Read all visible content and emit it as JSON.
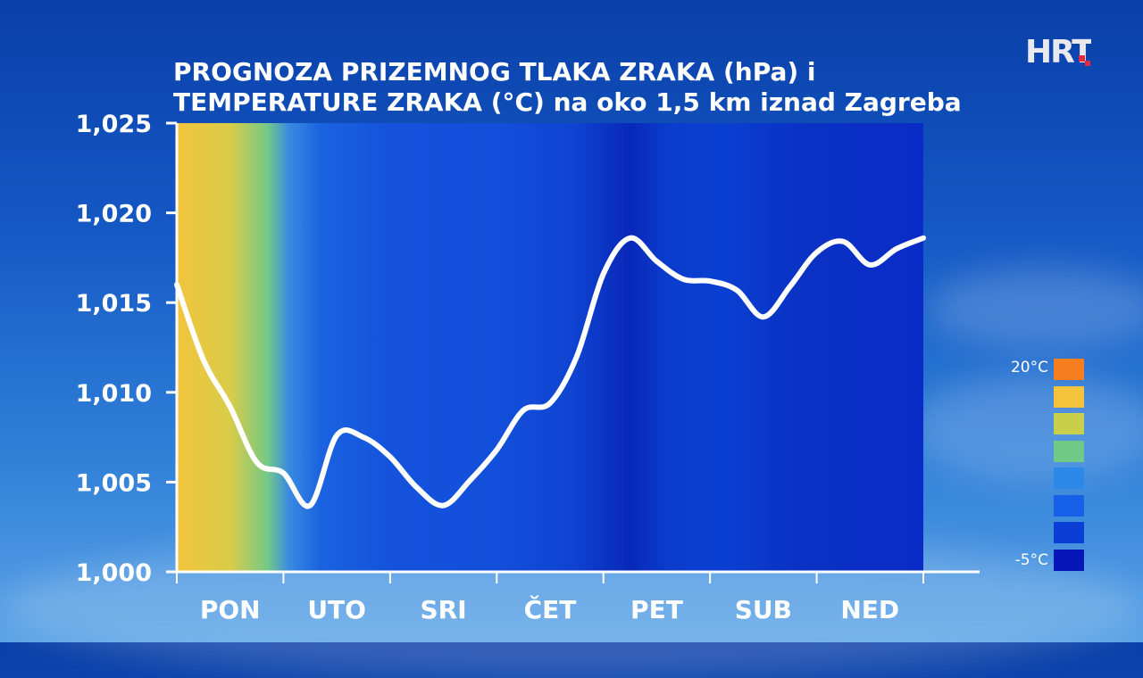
{
  "title_lines": [
    "PROGNOZA PRIZEMNOG TLAKA ZRAKA (hPa) i",
    "TEMPERATURE ZRAKA (°C) na oko 1,5 km iznad Zagreba"
  ],
  "logo_text": "HRT",
  "legend": {
    "max_label": "20°C",
    "min_label": "-5°C",
    "colors": [
      "#f57f1e",
      "#f5c23c",
      "#c8cf4a",
      "#6fca88",
      "#2b8ae8",
      "#1560e6",
      "#0a3ed6",
      "#0616b8"
    ]
  },
  "chart_data": {
    "type": "line",
    "title": "PROGNOZA PRIZEMNOG TLAKA ZRAKA (hPa) i TEMPERATURE ZRAKA (°C) na oko 1,5 km iznad Zagreba",
    "ylim": [
      1000,
      1025
    ],
    "yticks": [
      1000,
      1005,
      1010,
      1015,
      1020,
      1025
    ],
    "ytick_labels": [
      "1,000",
      "1,005",
      "1,010",
      "1,015",
      "1,020",
      "1,025"
    ],
    "xlim": [
      0,
      7
    ],
    "categories": [
      "PON",
      "UTO",
      "SRI",
      "ČET",
      "PET",
      "SUB",
      "NED"
    ],
    "series": [
      {
        "color": "#ffffff",
        "x": [
          0,
          0.25,
          0.5,
          0.75,
          1.0,
          1.25,
          1.5,
          1.75,
          2.0,
          2.25,
          2.5,
          2.75,
          3.0,
          3.25,
          3.5,
          3.75,
          4.0,
          4.25,
          4.5,
          4.75,
          5.0,
          5.25,
          5.5,
          5.75,
          6.0,
          6.25,
          6.5,
          6.75,
          7.0
        ],
        "values": [
          1016.0,
          1011.8,
          1009.2,
          1006.1,
          1005.5,
          1003.7,
          1007.6,
          1007.5,
          1006.4,
          1004.7,
          1003.7,
          1005.1,
          1006.8,
          1009.0,
          1009.4,
          1012.0,
          1016.6,
          1018.6,
          1017.3,
          1016.3,
          1016.2,
          1015.7,
          1014.2,
          1015.9,
          1017.8,
          1018.4,
          1017.1,
          1018.0,
          1018.6
        ]
      }
    ],
    "background_temperature": {
      "colorbar_range_c": [
        -5,
        20
      ],
      "stops": [
        {
          "x": 0.0,
          "color": "#f2c43c"
        },
        {
          "x": 0.5,
          "color": "#d9cc48"
        },
        {
          "x": 0.85,
          "color": "#74c986"
        },
        {
          "x": 1.05,
          "color": "#3a8ae2"
        },
        {
          "x": 1.35,
          "color": "#1a63e0"
        },
        {
          "x": 2.0,
          "color": "#1452dc"
        },
        {
          "x": 3.0,
          "color": "#124fda"
        },
        {
          "x": 3.7,
          "color": "#0f44d2"
        },
        {
          "x": 4.25,
          "color": "#0828b8"
        },
        {
          "x": 4.6,
          "color": "#0a3ccc"
        },
        {
          "x": 5.1,
          "color": "#0a40d2"
        },
        {
          "x": 5.6,
          "color": "#0a36c8"
        },
        {
          "x": 6.0,
          "color": "#0a30c4"
        },
        {
          "x": 7.0,
          "color": "#0a2cc6"
        }
      ]
    }
  }
}
